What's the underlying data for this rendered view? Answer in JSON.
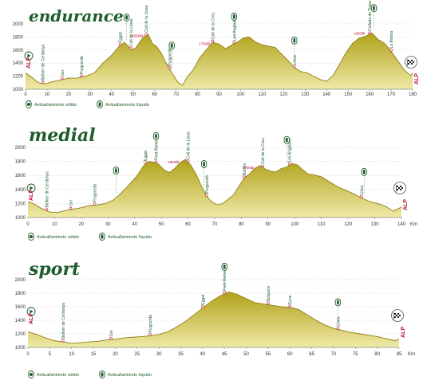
{
  "colors": {
    "fill_top": "#b0a21a",
    "fill_bottom": "#efe9a6",
    "outline": "#8e7f10",
    "grid": "#cfcfcf",
    "green": "#1f5d2c",
    "red": "#c0143c",
    "axis": "#888888"
  },
  "legend": {
    "solid": "Avituallamiento sólido",
    "liquid": "Avituallamiento líquido"
  },
  "markers": {
    "start": "ALP",
    "finish": "ALP"
  },
  "chart_data": [
    {
      "type": "area",
      "title": "endurance",
      "xlabel": "",
      "ylabel": "",
      "x_unit": "",
      "xlim": [
        0,
        180
      ],
      "ylim": [
        1000,
        2000
      ],
      "xticks": [
        0,
        10,
        20,
        30,
        40,
        50,
        60,
        70,
        80,
        90,
        100,
        110,
        120,
        130,
        140,
        150,
        160,
        170,
        180
      ],
      "yticks": [
        1000,
        1200,
        1400,
        1600,
        1800,
        2000
      ],
      "grid": true,
      "profile": {
        "x": [
          0,
          3,
          6,
          9,
          12,
          16,
          20,
          24,
          28,
          32,
          36,
          40,
          43,
          46,
          49,
          51,
          53,
          55,
          57,
          59,
          61,
          63,
          65,
          67,
          69,
          71,
          73,
          75,
          78,
          81,
          84,
          87,
          90,
          93,
          96,
          99,
          101,
          104,
          107,
          110,
          113,
          116,
          119,
          122,
          125,
          128,
          131,
          134,
          137,
          140,
          143,
          146,
          149,
          152,
          155,
          158,
          161,
          164,
          167,
          170,
          173,
          176,
          179,
          180
        ],
        "y": [
          1250,
          1180,
          1100,
          1080,
          1110,
          1140,
          1170,
          1170,
          1200,
          1250,
          1400,
          1520,
          1640,
          1720,
          1610,
          1620,
          1720,
          1800,
          1840,
          1700,
          1650,
          1560,
          1420,
          1310,
          1200,
          1100,
          1060,
          1180,
          1300,
          1480,
          1600,
          1720,
          1690,
          1620,
          1680,
          1730,
          1780,
          1800,
          1720,
          1680,
          1660,
          1640,
          1540,
          1440,
          1330,
          1270,
          1250,
          1200,
          1150,
          1120,
          1210,
          1380,
          1560,
          1700,
          1780,
          1810,
          1860,
          1760,
          1700,
          1580,
          1440,
          1300,
          1210,
          1250
        ]
      },
      "labels": [
        {
          "x": 8,
          "text": "Bellver de Cerdanya"
        },
        {
          "x": 17,
          "text": "Ger"
        },
        {
          "x": 26,
          "text": "Puigcerdà"
        },
        {
          "x": 44,
          "text": "Eggat"
        },
        {
          "x": 49,
          "text": "Coll de la Llosa"
        },
        {
          "x": 56,
          "text": "Coll de la Llosa"
        },
        {
          "x": 67,
          "text": "Puigcerdà"
        },
        {
          "x": 87,
          "text": "Coll de la Creu"
        },
        {
          "x": 97,
          "text": "Les Anglades"
        },
        {
          "x": 125,
          "text": "Llívia"
        },
        {
          "x": 160,
          "text": "Collada de Toses"
        },
        {
          "x": 170,
          "text": "La Molina"
        }
      ],
      "altitudes": [
        {
          "x": 54,
          "text": "1868"
        },
        {
          "x": 85,
          "text": "1700"
        },
        {
          "x": 157,
          "text": "1800"
        }
      ],
      "supplies": [
        {
          "x": 47,
          "kind": "liquid"
        },
        {
          "x": 68,
          "kind": "liquid"
        },
        {
          "x": 97,
          "kind": "liquid"
        },
        {
          "x": 125,
          "kind": "liquid"
        },
        {
          "x": 162,
          "kind": "liquid"
        }
      ]
    },
    {
      "type": "area",
      "title": "medial",
      "xlabel": "",
      "ylabel": "",
      "x_unit": "Km",
      "xlim": [
        0,
        140
      ],
      "ylim": [
        1000,
        2000
      ],
      "xticks": [
        0,
        10,
        20,
        30,
        40,
        50,
        60,
        70,
        80,
        90,
        100,
        110,
        120,
        130,
        140
      ],
      "yticks": [
        1000,
        1200,
        1400,
        1600,
        1800,
        2000
      ],
      "grid": true,
      "profile": {
        "x": [
          0,
          2,
          5,
          8,
          11,
          14,
          17,
          20,
          23,
          26,
          29,
          32,
          35,
          38,
          41,
          43,
          45,
          47,
          49,
          51,
          53,
          55,
          57,
          59,
          61,
          63,
          65,
          67,
          69,
          71,
          73,
          75,
          77,
          79,
          81,
          83,
          85,
          87,
          89,
          91,
          93,
          95,
          97,
          99,
          101,
          103,
          105,
          107,
          110,
          113,
          116,
          119,
          122,
          125,
          128,
          131,
          134,
          137,
          140
        ],
        "y": [
          1230,
          1200,
          1130,
          1080,
          1070,
          1100,
          1120,
          1140,
          1170,
          1180,
          1200,
          1250,
          1350,
          1470,
          1600,
          1720,
          1800,
          1790,
          1760,
          1680,
          1640,
          1700,
          1780,
          1830,
          1750,
          1620,
          1450,
          1300,
          1220,
          1180,
          1200,
          1260,
          1320,
          1440,
          1560,
          1620,
          1700,
          1740,
          1690,
          1660,
          1650,
          1700,
          1720,
          1770,
          1750,
          1680,
          1620,
          1610,
          1580,
          1510,
          1440,
          1390,
          1340,
          1280,
          1230,
          1200,
          1160,
          1090,
          1150
        ]
      },
      "labels": [
        {
          "x": 7,
          "text": "Bellver de Cerdanya"
        },
        {
          "x": 16,
          "text": "Ger"
        },
        {
          "x": 25,
          "text": "Puigcerdà"
        },
        {
          "x": 44,
          "text": "Eggat"
        },
        {
          "x": 48,
          "text": "Font Romeu"
        },
        {
          "x": 60,
          "text": "Coll de la Llosa"
        },
        {
          "x": 67,
          "text": "Puigcerdà"
        },
        {
          "x": 81,
          "text": "Baillès"
        },
        {
          "x": 88,
          "text": "Coll de la Creu"
        },
        {
          "x": 98,
          "text": "Les Anglades"
        },
        {
          "x": 125,
          "text": "Llívia"
        }
      ],
      "altitudes": [
        {
          "x": 56,
          "text": "1868"
        },
        {
          "x": 84,
          "text": "1700"
        }
      ],
      "supplies": [
        {
          "x": 33,
          "kind": "liquid"
        },
        {
          "x": 48,
          "kind": "liquid"
        },
        {
          "x": 66,
          "kind": "liquid"
        },
        {
          "x": 97,
          "kind": "liquid"
        },
        {
          "x": 126,
          "kind": "liquid"
        }
      ]
    },
    {
      "type": "area",
      "title": "sport",
      "xlabel": "",
      "ylabel": "",
      "x_unit": "Km",
      "xlim": [
        0,
        85
      ],
      "ylim": [
        1000,
        2000
      ],
      "xticks": [
        0,
        5,
        10,
        15,
        20,
        25,
        30,
        35,
        40,
        45,
        50,
        55,
        60,
        65,
        70,
        75,
        80,
        85
      ],
      "yticks": [
        1000,
        1200,
        1400,
        1600,
        1800,
        2000
      ],
      "grid": true,
      "profile": {
        "x": [
          0,
          2,
          4,
          6,
          8,
          10,
          12,
          14,
          16,
          18,
          20,
          22,
          24,
          26,
          28,
          30,
          32,
          34,
          36,
          38,
          40,
          42,
          44,
          46,
          48,
          50,
          52,
          54,
          56,
          58,
          60,
          62,
          64,
          66,
          68,
          70,
          72,
          74,
          76,
          78,
          80,
          82,
          84,
          85
        ],
        "y": [
          1230,
          1190,
          1140,
          1100,
          1080,
          1060,
          1070,
          1080,
          1090,
          1110,
          1120,
          1140,
          1150,
          1160,
          1170,
          1190,
          1230,
          1300,
          1380,
          1480,
          1580,
          1680,
          1760,
          1820,
          1780,
          1720,
          1660,
          1640,
          1620,
          1600,
          1590,
          1560,
          1480,
          1400,
          1330,
          1280,
          1250,
          1220,
          1200,
          1180,
          1160,
          1130,
          1100,
          1120
        ]
      },
      "labels": [
        {
          "x": 8,
          "text": "Bellver de Cerdanya"
        },
        {
          "x": 19,
          "text": "Ger"
        },
        {
          "x": 28,
          "text": "Puigcerdà"
        },
        {
          "x": 40,
          "text": "Eggat"
        },
        {
          "x": 45,
          "text": "Font Romeu"
        },
        {
          "x": 55,
          "text": "Bolquère"
        },
        {
          "x": 60,
          "text": "Eyne"
        },
        {
          "x": 71,
          "text": "Llívia"
        }
      ],
      "altitudes": [],
      "supplies": [
        {
          "x": 45,
          "kind": "liquid"
        },
        {
          "x": 71,
          "kind": "liquid"
        }
      ]
    }
  ]
}
